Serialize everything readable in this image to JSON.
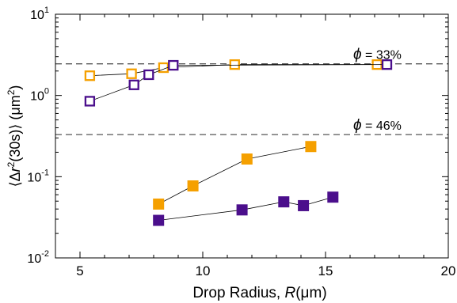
{
  "chart_data": {
    "type": "scatter",
    "title": "",
    "xlabel": "Drop Radius, R(μm)",
    "xlabel_parts": {
      "prefix": "Drop Radius, ",
      "italic": "R",
      "suffix": "(μm)"
    },
    "ylabel": "⟨Δr²(30s)⟩ (μm²)",
    "xlim": [
      4,
      20
    ],
    "ylim": [
      0.01,
      10
    ],
    "yscale": "log",
    "grid": false,
    "xticks": [
      5,
      10,
      15,
      20
    ],
    "xtick_labels": [
      "5",
      "10",
      "15",
      "20"
    ],
    "yticks": [
      0.01,
      0.1,
      1,
      10
    ],
    "ytick_labels": [
      {
        "base": "10",
        "exp": "-2"
      },
      {
        "base": "10",
        "exp": "-1"
      },
      {
        "base": "10",
        "exp": "0"
      },
      {
        "base": "10",
        "exp": "1"
      }
    ],
    "reference_lines": [
      {
        "y": 2.45,
        "label_symbol": "ϕ",
        "label_text": " = 33%",
        "style": "dashed",
        "color": "#555555"
      },
      {
        "y": 0.33,
        "label_symbol": "ϕ",
        "label_text": " = 46%",
        "style": "dashed",
        "color": "#555555"
      }
    ],
    "series": [
      {
        "color": "#f5a000",
        "filled": false,
        "x": [
          5.4,
          7.1,
          8.4,
          11.3,
          17.1
        ],
        "y": [
          1.75,
          1.85,
          2.2,
          2.4,
          2.4
        ]
      },
      {
        "color": "#4b0f8c",
        "filled": false,
        "x": [
          5.4,
          7.2,
          7.8,
          8.8,
          17.5
        ],
        "y": [
          0.85,
          1.35,
          1.8,
          2.35,
          2.4
        ]
      },
      {
        "color": "#f5a000",
        "filled": true,
        "x": [
          8.2,
          9.6,
          11.8,
          14.4
        ],
        "y": [
          0.046,
          0.077,
          0.165,
          0.235
        ]
      },
      {
        "color": "#4b0f8c",
        "filled": true,
        "x": [
          8.2,
          11.6,
          13.3,
          14.1,
          15.3
        ],
        "y": [
          0.029,
          0.039,
          0.049,
          0.044,
          0.056
        ]
      }
    ]
  }
}
